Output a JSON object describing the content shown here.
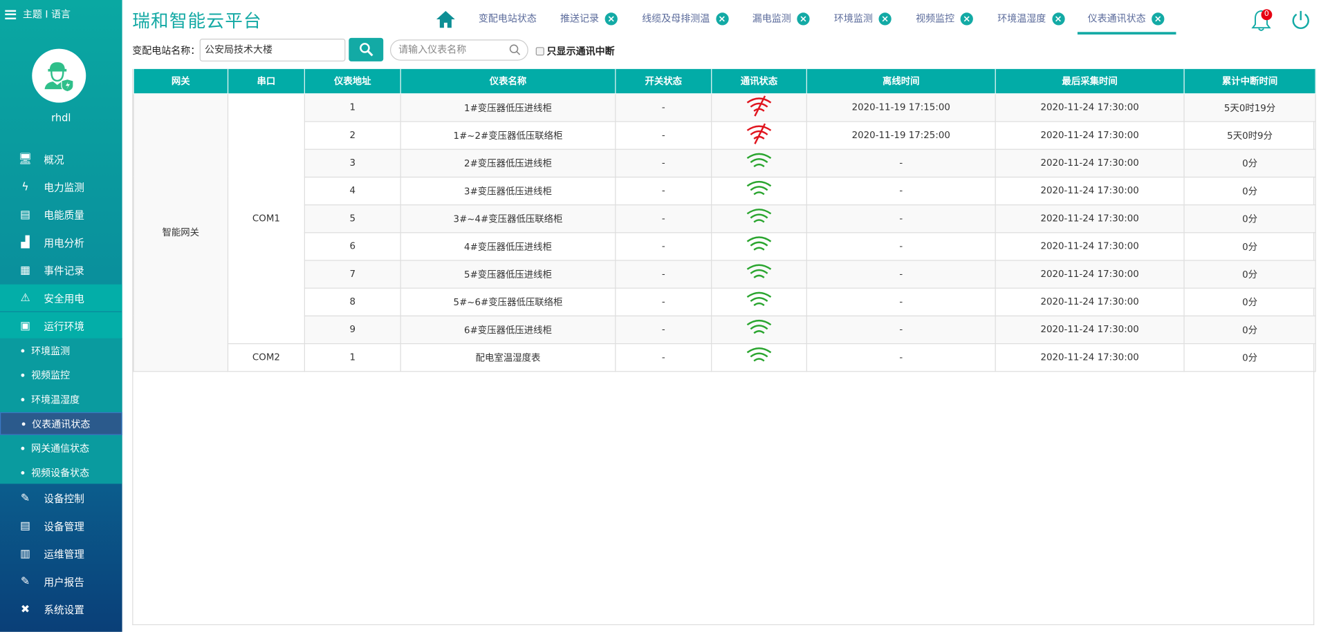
{
  "sidebar": {
    "topbar": "主题 I 语言",
    "username": "rhdl",
    "menu": [
      {
        "label": "概况",
        "icon": "monitor-icon"
      },
      {
        "label": "电力监测",
        "icon": "lightning-icon"
      },
      {
        "label": "电能质量",
        "icon": "quality-chart-icon"
      },
      {
        "label": "用电分析",
        "icon": "bar-chart-icon"
      },
      {
        "label": "事件记录",
        "icon": "document-icon"
      },
      {
        "label": "安全用电",
        "icon": "alarm-light-icon"
      },
      {
        "label": "运行环境",
        "icon": "camera-icon"
      }
    ],
    "submenu": [
      "环境监测",
      "视频监控",
      "环境温湿度",
      "仪表通讯状态",
      "网关通信状态",
      "视频设备状态"
    ],
    "submenu_active": 3,
    "menu_bottom": [
      {
        "label": "设备控制",
        "icon": "device-control-icon"
      },
      {
        "label": "设备管理",
        "icon": "device-manage-icon"
      },
      {
        "label": "运维管理",
        "icon": "maintenance-icon"
      },
      {
        "label": "用户报告",
        "icon": "edit-report-icon"
      },
      {
        "label": "系统设置",
        "icon": "tools-icon"
      }
    ]
  },
  "header": {
    "title": "瑞和智能云平台",
    "tabs": [
      {
        "label": "变配电站状态",
        "closable": false
      },
      {
        "label": "推送记录",
        "closable": true
      },
      {
        "label": "线缆及母排测温",
        "closable": true
      },
      {
        "label": "漏电监测",
        "closable": true
      },
      {
        "label": "环境监测",
        "closable": true
      },
      {
        "label": "视频监控",
        "closable": true
      },
      {
        "label": "环境温湿度",
        "closable": true
      },
      {
        "label": "仪表通讯状态",
        "closable": true
      }
    ],
    "active_tab": 7,
    "notification_count": "0"
  },
  "filter": {
    "station_label": "变配电站名称：",
    "station_value": "公安局技术大楼",
    "meter_placeholder": "请输入仪表名称",
    "only_interrupted_label": "只显示通讯中断",
    "only_interrupted_checked": false
  },
  "table": {
    "columns": [
      "网关",
      "串口",
      "仪表地址",
      "仪表名称",
      "开关状态",
      "通讯状态",
      "离线时间",
      "最后采集时间",
      "累计中断时间"
    ],
    "gateway": "智能网关",
    "ports": [
      {
        "name": "COM1",
        "rows": [
          {
            "addr": "1",
            "name": "1#变压器低压进线柜",
            "switch": "-",
            "comm": "offline",
            "offline": "2020-11-19 17:15:00",
            "last": "2020-11-24 17:30:00",
            "total": "5天0时19分"
          },
          {
            "addr": "2",
            "name": "1#~2#变压器低压联络柜",
            "switch": "-",
            "comm": "offline",
            "offline": "2020-11-19 17:25:00",
            "last": "2020-11-24 17:30:00",
            "total": "5天0时9分"
          },
          {
            "addr": "3",
            "name": "2#变压器低压进线柜",
            "switch": "-",
            "comm": "online",
            "offline": "-",
            "last": "2020-11-24 17:30:00",
            "total": "0分"
          },
          {
            "addr": "4",
            "name": "3#变压器低压进线柜",
            "switch": "-",
            "comm": "online",
            "offline": "-",
            "last": "2020-11-24 17:30:00",
            "total": "0分"
          },
          {
            "addr": "5",
            "name": "3#~4#变压器低压联络柜",
            "switch": "-",
            "comm": "online",
            "offline": "-",
            "last": "2020-11-24 17:30:00",
            "total": "0分"
          },
          {
            "addr": "6",
            "name": "4#变压器低压进线柜",
            "switch": "-",
            "comm": "online",
            "offline": "-",
            "last": "2020-11-24 17:30:00",
            "total": "0分"
          },
          {
            "addr": "7",
            "name": "5#变压器低压进线柜",
            "switch": "-",
            "comm": "online",
            "offline": "-",
            "last": "2020-11-24 17:30:00",
            "total": "0分"
          },
          {
            "addr": "8",
            "name": "5#~6#变压器低压联络柜",
            "switch": "-",
            "comm": "online",
            "offline": "-",
            "last": "2020-11-24 17:30:00",
            "total": "0分"
          },
          {
            "addr": "9",
            "name": "6#变压器低压进线柜",
            "switch": "-",
            "comm": "online",
            "offline": "-",
            "last": "2020-11-24 17:30:00",
            "total": "0分"
          }
        ]
      },
      {
        "name": "COM2",
        "rows": [
          {
            "addr": "1",
            "name": "配电室温湿度表",
            "switch": "-",
            "comm": "online",
            "offline": "-",
            "last": "2020-11-24 17:30:00",
            "total": "0分"
          }
        ]
      }
    ]
  },
  "colors": {
    "accent": "#02aca7",
    "online": "#2aa52f",
    "offline": "#e0141e",
    "active_sub": "#2b5a8c"
  }
}
